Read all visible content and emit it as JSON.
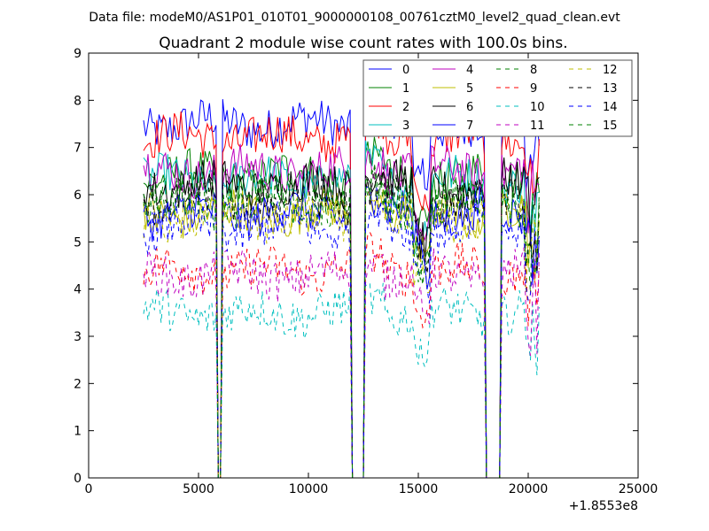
{
  "figure": {
    "suptitle": "Data file: modeM0/AS1P01_010T01_9000000108_00761cztM0_level2_quad_clean.evt",
    "title": "Quadrant 2 module wise count rates with 100.0s bins.",
    "offset_label": "+1.8553e8"
  },
  "chart_data": {
    "type": "line",
    "title": "Quadrant 2 module wise count rates with 100.0s bins.",
    "xlabel": "",
    "ylabel": "",
    "xlim": [
      0,
      25000
    ],
    "ylim": [
      0,
      9
    ],
    "x_ticks": [
      0,
      5000,
      10000,
      15000,
      20000,
      25000
    ],
    "y_ticks": [
      0,
      1,
      2,
      3,
      4,
      5,
      6,
      7,
      8,
      9
    ],
    "x_offset": "+1.8553e8",
    "grid": false,
    "legend_position": "top-right",
    "legend_columns": 4,
    "gaps": [
      [
        5900,
        6050
      ],
      [
        12000,
        12500
      ],
      [
        18050,
        18750
      ]
    ],
    "x_start": 2500,
    "x_end": 20500,
    "series": [
      {
        "name": "0",
        "color": "#0000ff",
        "style": "solid",
        "level": 7.5
      },
      {
        "name": "1",
        "color": "#008000",
        "style": "solid",
        "level": 6.4
      },
      {
        "name": "2",
        "color": "#ff0000",
        "style": "solid",
        "level": 7.2
      },
      {
        "name": "3",
        "color": "#00bfbf",
        "style": "solid",
        "level": 6.3
      },
      {
        "name": "4",
        "color": "#bf00bf",
        "style": "solid",
        "level": 6.5
      },
      {
        "name": "5",
        "color": "#bfbf00",
        "style": "solid",
        "level": 5.6
      },
      {
        "name": "6",
        "color": "#000000",
        "style": "solid",
        "level": 6.2
      },
      {
        "name": "7",
        "color": "#0000ff",
        "style": "solid",
        "level": 5.6
      },
      {
        "name": "8",
        "color": "#008000",
        "style": "dashed",
        "level": 5.9
      },
      {
        "name": "9",
        "color": "#ff0000",
        "style": "dashed",
        "level": 4.4
      },
      {
        "name": "10",
        "color": "#00bfbf",
        "style": "dashed",
        "level": 3.5
      },
      {
        "name": "11",
        "color": "#bf00bf",
        "style": "dashed",
        "level": 4.3
      },
      {
        "name": "12",
        "color": "#bfbf00",
        "style": "dashed",
        "level": 5.5
      },
      {
        "name": "13",
        "color": "#000000",
        "style": "dashed",
        "level": 5.9
      },
      {
        "name": "14",
        "color": "#0000ff",
        "style": "dashed",
        "level": 5.3
      },
      {
        "name": "15",
        "color": "#008000",
        "style": "dashed",
        "level": 5.8
      }
    ]
  }
}
